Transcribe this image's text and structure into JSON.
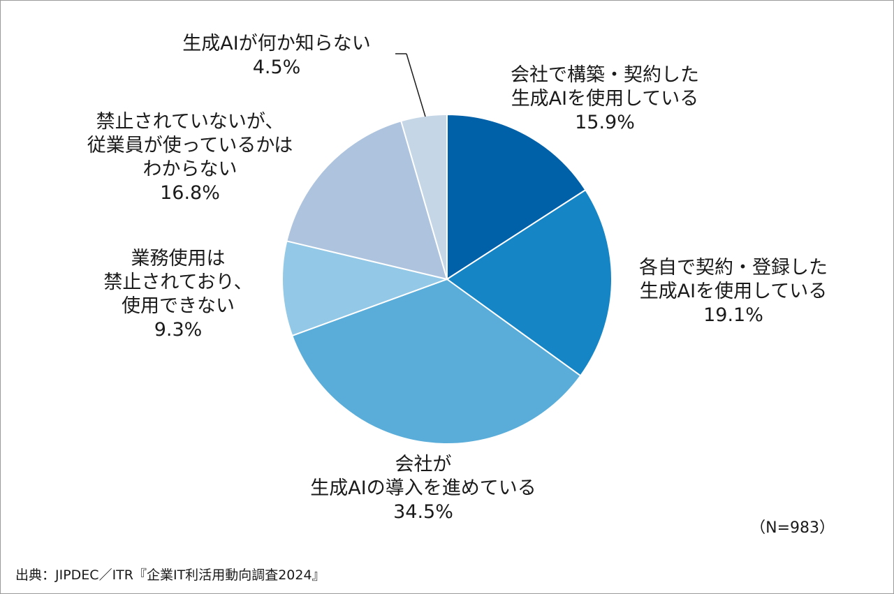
{
  "chart_data": {
    "type": "pie",
    "start_angle_deg": 0,
    "direction": "clockwise",
    "slices": [
      {
        "label_lines": [
          "会社で構築・契約した",
          "生成AIを使用している"
        ],
        "value": 15.9,
        "value_label": "15.9%",
        "color": "#0060a8"
      },
      {
        "label_lines": [
          "各自で契約・登録した",
          "生成AIを使用している"
        ],
        "value": 19.1,
        "value_label": "19.1%",
        "color": "#1585c5"
      },
      {
        "label_lines": [
          "会社が",
          "生成AIの導入を進めている"
        ],
        "value": 34.5,
        "value_label": "34.5%",
        "color": "#5aadd9"
      },
      {
        "label_lines": [
          "業務使用は",
          "禁止されており、",
          "使用できない"
        ],
        "value": 9.3,
        "value_label": "9.3%",
        "color": "#93c9e6"
      },
      {
        "label_lines": [
          "禁止されていないが、",
          "従業員が使っているかは",
          "わからない"
        ],
        "value": 16.8,
        "value_label": "16.8%",
        "color": "#aec4de"
      },
      {
        "label_lines": [
          "生成AIが何か知らない"
        ],
        "value": 4.5,
        "value_label": "4.5%",
        "color": "#c5d6e7"
      }
    ],
    "note": "（N=983）"
  },
  "source": "出典：JIPDEC／ITR『企業IT利活用動向調査2024』"
}
